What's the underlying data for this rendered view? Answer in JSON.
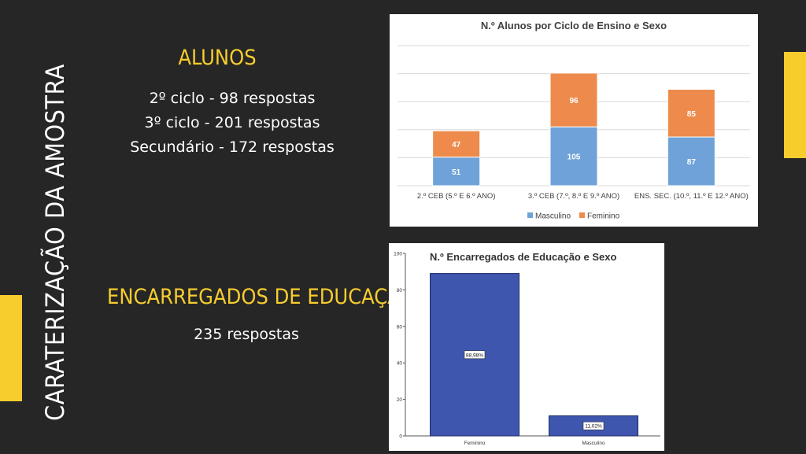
{
  "slide": {
    "side_title": "CARATERIZAÇÃO DA AMOSTRA",
    "alunos": {
      "heading": "ALUNOS",
      "lines": [
        "2º ciclo - 98 respostas",
        "3º ciclo - 201 respostas",
        "Secundário - 172 respostas"
      ]
    },
    "encarregados": {
      "heading": "ENCARREGADOS DE EDUCAÇÃO",
      "line": "235 respostas"
    },
    "colors": {
      "background": "#262626",
      "accent": "#F7CD2E",
      "text": "#FFFFFF"
    }
  },
  "chart_data": [
    {
      "type": "bar",
      "stacked": true,
      "title": "N.º Alunos por Ciclo de Ensino e Sexo",
      "categories": [
        "2.º CEB (5.º E 6.º ANO)",
        "3.º CEB (7.º, 8.º E 9.º ANO)",
        "ENS. SEC. (10.º, 11.º E 12.º ANO)"
      ],
      "series": [
        {
          "name": "Masculino",
          "values": [
            51,
            105,
            87
          ],
          "color": "#6FA2D8"
        },
        {
          "name": "Feminino",
          "values": [
            47,
            96,
            85
          ],
          "color": "#EE8B4C"
        }
      ],
      "ylim": [
        0,
        250
      ],
      "grid": true,
      "legend": "bottom"
    },
    {
      "type": "bar",
      "title": "N.º Encarregados de Educação e Sexo",
      "categories": [
        "Feminino",
        "Masculino"
      ],
      "values": [
        88.98,
        11.02
      ],
      "data_labels": [
        "88,98%",
        "11,02%"
      ],
      "yticks": [
        "0",
        "20",
        "40",
        "60",
        "80",
        "100"
      ],
      "ylim": [
        0,
        100
      ],
      "color": "#3F56AE",
      "grid": false
    }
  ]
}
